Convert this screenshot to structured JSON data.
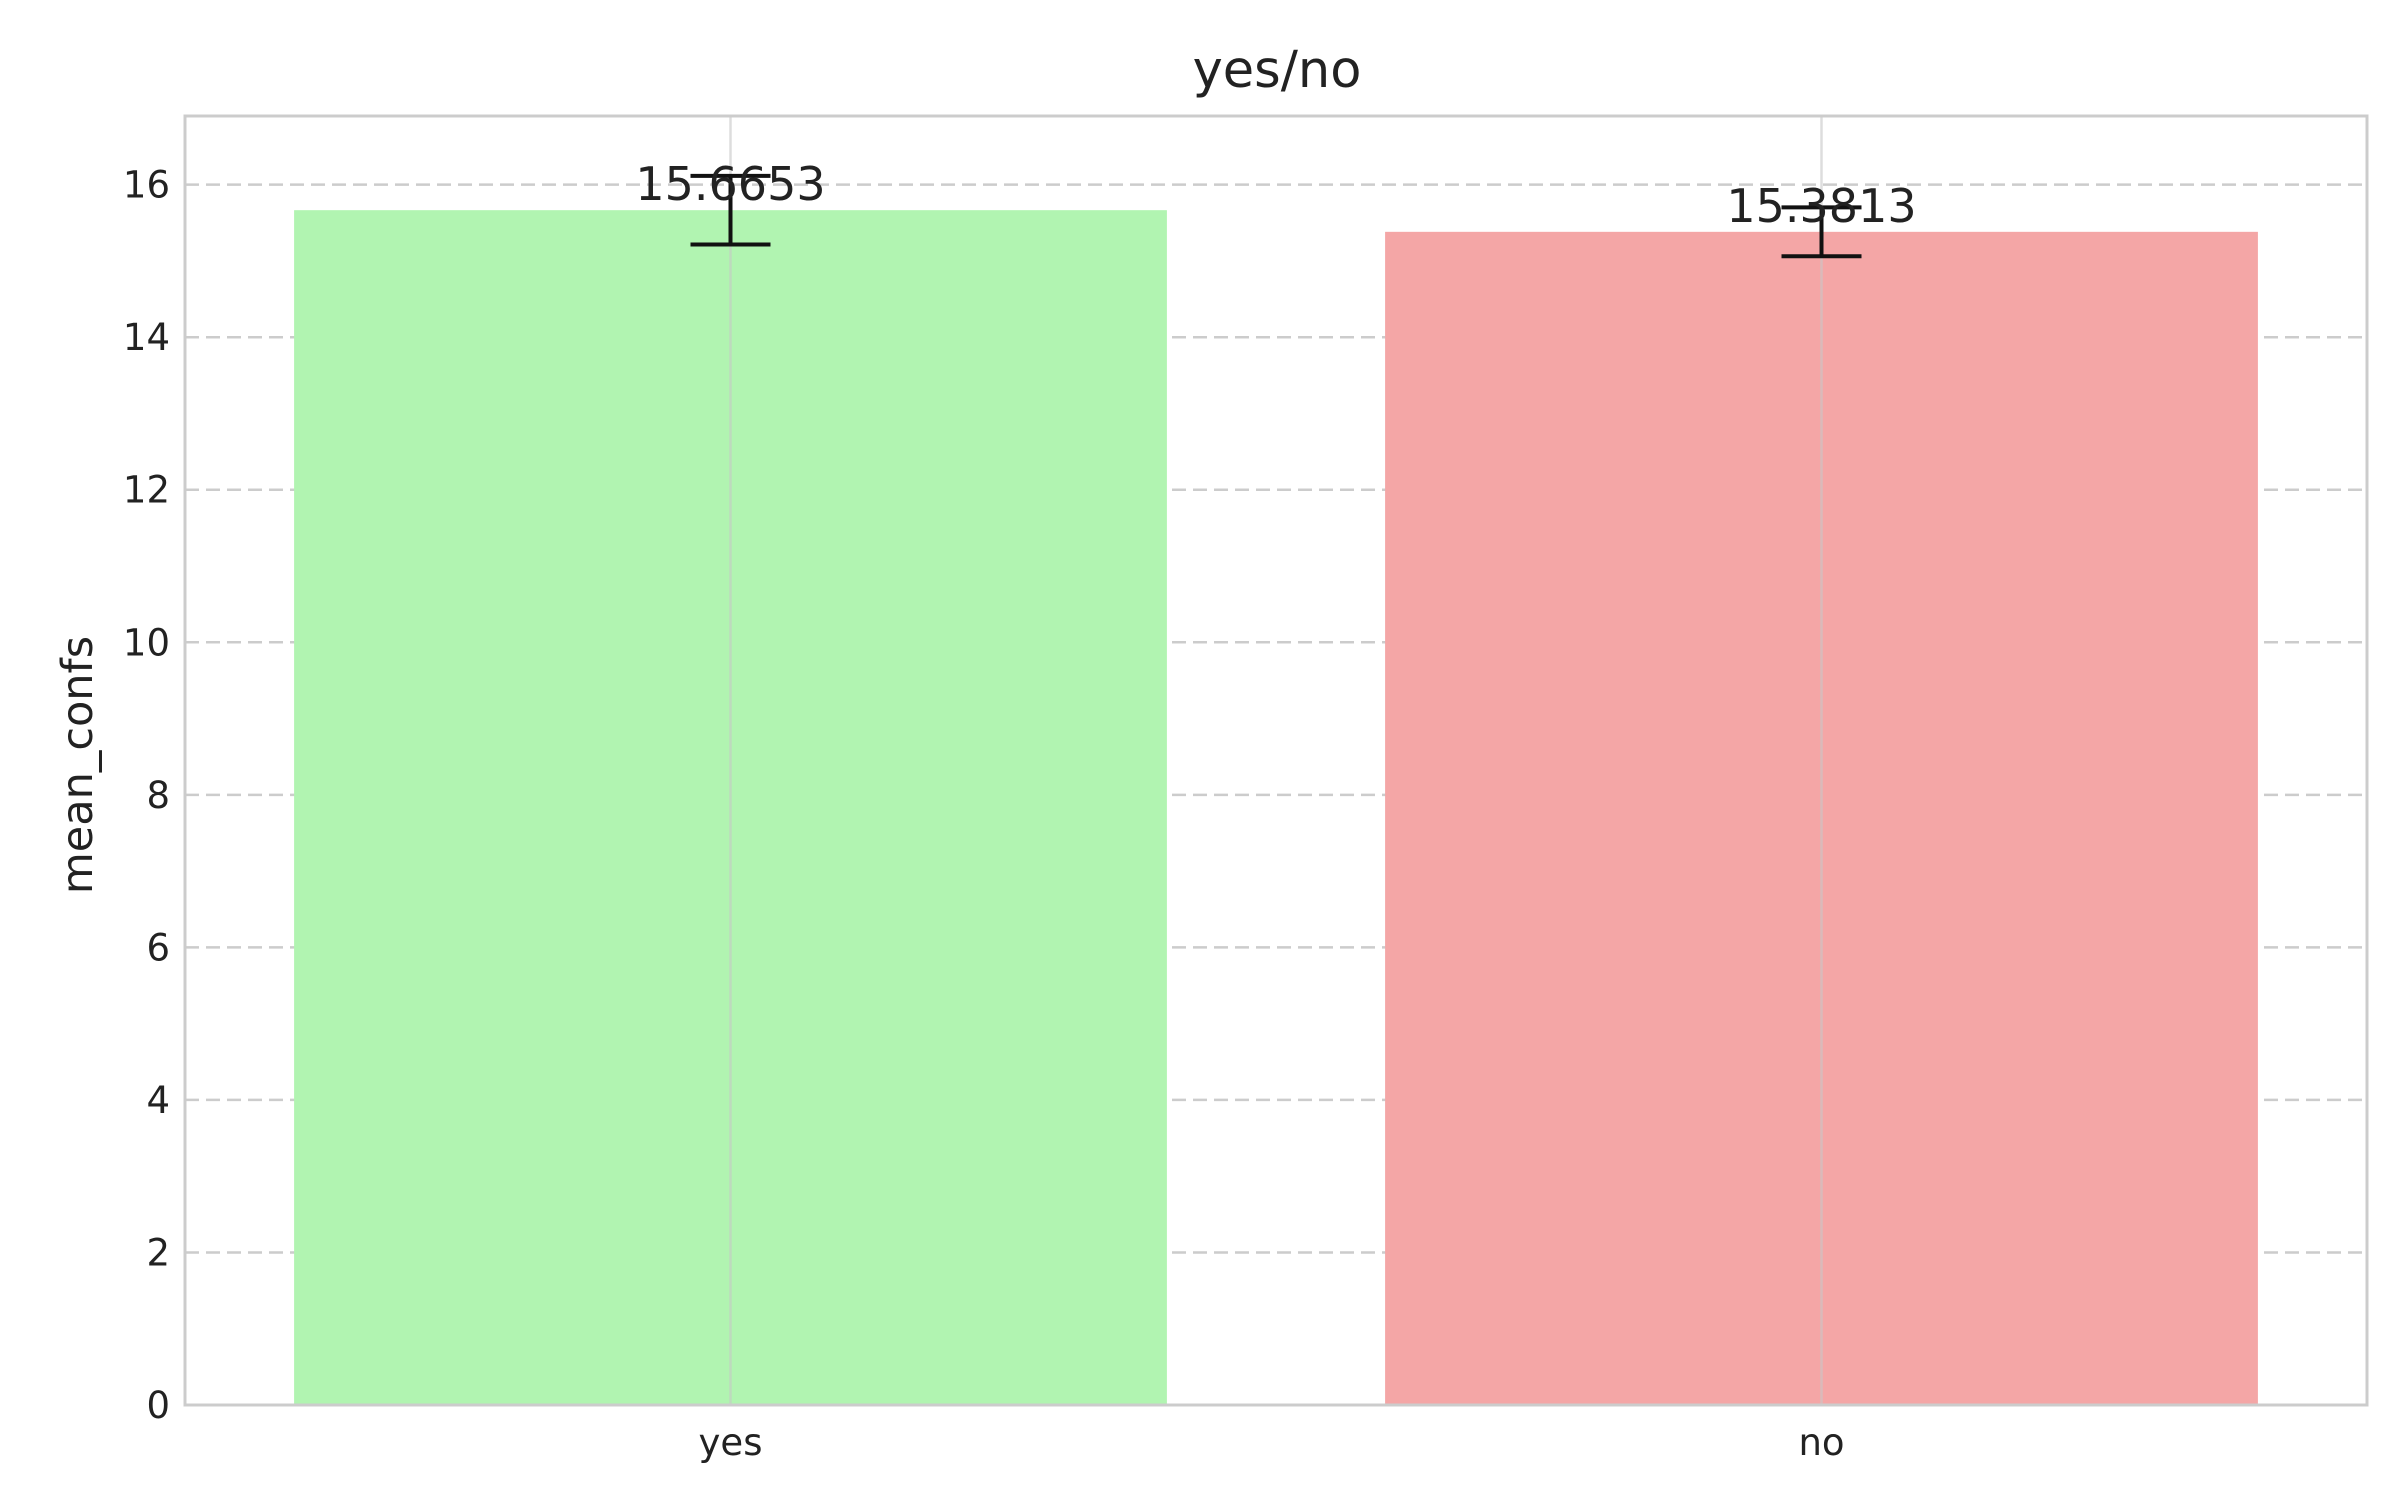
{
  "chart_data": {
    "type": "bar",
    "title": "yes/no",
    "xlabel": "",
    "ylabel": "mean_confs",
    "categories": [
      "yes",
      "no"
    ],
    "values": [
      15.6653,
      15.3813
    ],
    "error": [
      0.45,
      0.32
    ],
    "data_labels": [
      "15.6653",
      "15.3813"
    ],
    "colors": [
      "#b1f4b1",
      "#f4a6a6"
    ],
    "ylim": [
      0,
      16.9
    ],
    "yticks": [
      0,
      2,
      4,
      6,
      8,
      10,
      12,
      14,
      16
    ],
    "grid": true
  }
}
